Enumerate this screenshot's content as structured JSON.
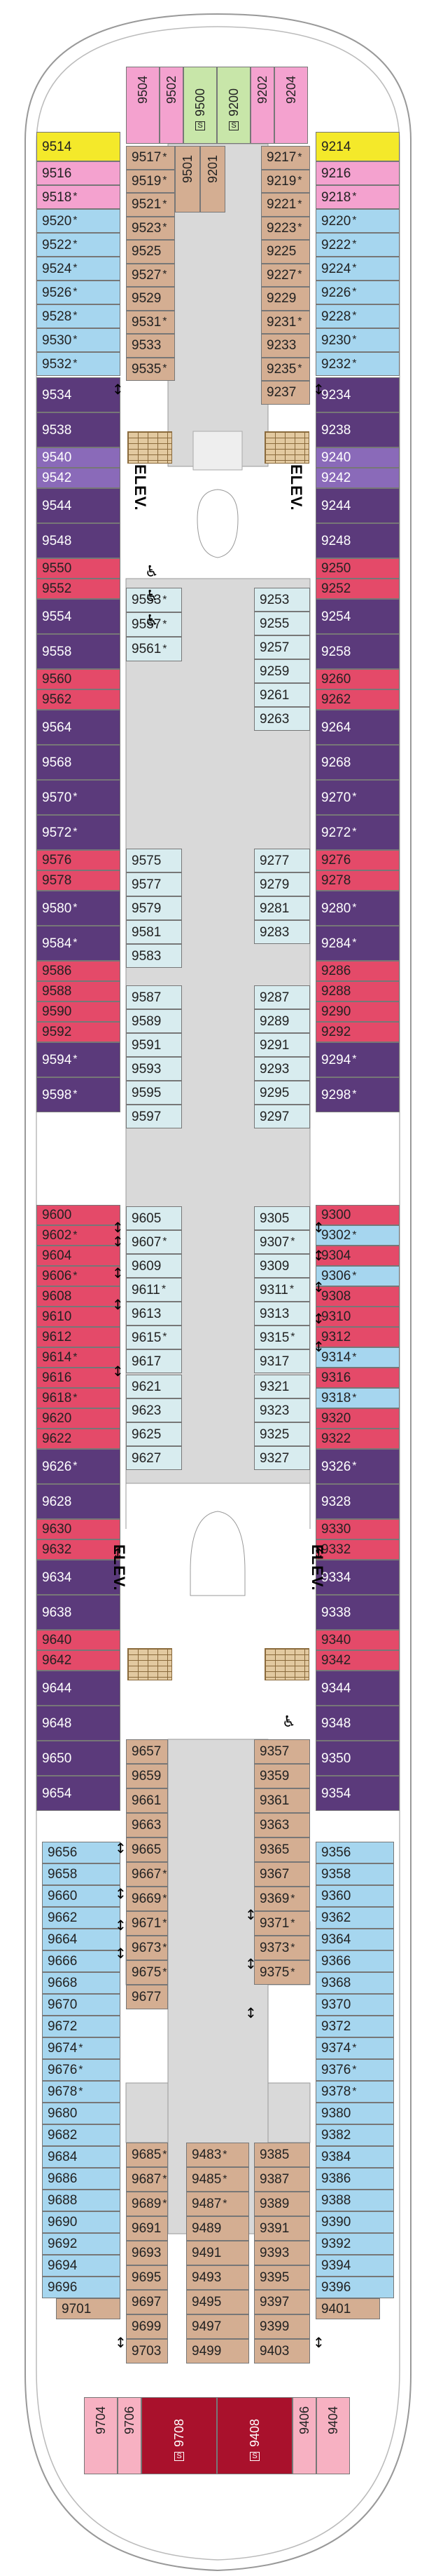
{
  "colors": {
    "sea_blue": "#a6d6ef",
    "tan": "#d4ae92",
    "purple": "#5b3a7b",
    "red": "#e44a69",
    "yellow": "#f4e92a",
    "pink": "#f4a2cf",
    "green": "#c8e6a9",
    "pale_cyan": "#d8ecef",
    "lilac": "#8a6ab9",
    "dark_red": "#a9112c",
    "light_pink": "#f7b1c2",
    "grey": "#d9d9d9"
  },
  "labels": {
    "elevator": "ELEV.",
    "accessible_icon": "wheelchair-icon",
    "connecting_icon": "connecting-arrow-icon",
    "suite_badge": "S"
  },
  "cabins": [
    {
      "n": "9514",
      "c": "yellow"
    },
    {
      "n": "9516",
      "c": "pink"
    },
    {
      "n": "9518",
      "c": "pink",
      "a": true
    },
    {
      "n": "9520",
      "c": "sea_blue",
      "a": true
    },
    {
      "n": "9522",
      "c": "sea_blue",
      "a": true
    },
    {
      "n": "9524",
      "c": "sea_blue",
      "a": true
    },
    {
      "n": "9526",
      "c": "sea_blue",
      "a": true
    },
    {
      "n": "9528",
      "c": "sea_blue",
      "a": true
    },
    {
      "n": "9530",
      "c": "sea_blue",
      "a": true
    },
    {
      "n": "9532",
      "c": "sea_blue",
      "a": true
    },
    {
      "n": "9534",
      "c": "purple"
    },
    {
      "n": "9538",
      "c": "purple"
    },
    {
      "n": "9540",
      "c": "lilac"
    },
    {
      "n": "9542",
      "c": "lilac"
    },
    {
      "n": "9544",
      "c": "purple"
    },
    {
      "n": "9548",
      "c": "purple"
    },
    {
      "n": "9550",
      "c": "red"
    },
    {
      "n": "9552",
      "c": "red"
    },
    {
      "n": "9554",
      "c": "purple"
    },
    {
      "n": "9558",
      "c": "purple"
    },
    {
      "n": "9560",
      "c": "red"
    },
    {
      "n": "9562",
      "c": "red"
    },
    {
      "n": "9564",
      "c": "purple"
    },
    {
      "n": "9568",
      "c": "purple"
    },
    {
      "n": "9570",
      "c": "purple",
      "a": true
    },
    {
      "n": "9572",
      "c": "purple",
      "a": true
    },
    {
      "n": "9576",
      "c": "red"
    },
    {
      "n": "9578",
      "c": "red"
    },
    {
      "n": "9580",
      "c": "purple",
      "a": true
    },
    {
      "n": "9584",
      "c": "purple",
      "a": true
    },
    {
      "n": "9586",
      "c": "red"
    },
    {
      "n": "9588",
      "c": "red"
    },
    {
      "n": "9590",
      "c": "red"
    },
    {
      "n": "9592",
      "c": "red"
    },
    {
      "n": "9594",
      "c": "purple",
      "a": true
    },
    {
      "n": "9598",
      "c": "purple",
      "a": true
    },
    {
      "n": "9600",
      "c": "red"
    },
    {
      "n": "9602",
      "c": "red",
      "a": true
    },
    {
      "n": "9604",
      "c": "red"
    },
    {
      "n": "9606",
      "c": "red",
      "a": true
    },
    {
      "n": "9608",
      "c": "red"
    },
    {
      "n": "9610",
      "c": "red"
    },
    {
      "n": "9612",
      "c": "red"
    },
    {
      "n": "9614",
      "c": "red",
      "a": true
    },
    {
      "n": "9616",
      "c": "red"
    },
    {
      "n": "9618",
      "c": "red",
      "a": true
    },
    {
      "n": "9620",
      "c": "red"
    },
    {
      "n": "9622",
      "c": "red"
    },
    {
      "n": "9626",
      "c": "purple",
      "a": true
    },
    {
      "n": "9628",
      "c": "purple"
    },
    {
      "n": "9630",
      "c": "red"
    },
    {
      "n": "9632",
      "c": "red"
    },
    {
      "n": "9634",
      "c": "purple"
    },
    {
      "n": "9638",
      "c": "purple"
    },
    {
      "n": "9640",
      "c": "red"
    },
    {
      "n": "9642",
      "c": "red"
    },
    {
      "n": "9644",
      "c": "purple"
    },
    {
      "n": "9648",
      "c": "purple"
    },
    {
      "n": "9650",
      "c": "purple"
    },
    {
      "n": "9654",
      "c": "purple"
    },
    {
      "n": "9656",
      "c": "sea_blue"
    },
    {
      "n": "9658",
      "c": "sea_blue"
    },
    {
      "n": "9660",
      "c": "sea_blue"
    },
    {
      "n": "9662",
      "c": "sea_blue"
    },
    {
      "n": "9664",
      "c": "sea_blue"
    },
    {
      "n": "9666",
      "c": "sea_blue"
    },
    {
      "n": "9668",
      "c": "sea_blue"
    },
    {
      "n": "9670",
      "c": "sea_blue"
    },
    {
      "n": "9672",
      "c": "sea_blue"
    },
    {
      "n": "9674",
      "c": "sea_blue",
      "a": true
    },
    {
      "n": "9676",
      "c": "sea_blue",
      "a": true
    },
    {
      "n": "9678",
      "c": "sea_blue",
      "a": true
    },
    {
      "n": "9680",
      "c": "sea_blue"
    },
    {
      "n": "9682",
      "c": "sea_blue"
    },
    {
      "n": "9684",
      "c": "sea_blue"
    },
    {
      "n": "9686",
      "c": "sea_blue"
    },
    {
      "n": "9688",
      "c": "sea_blue"
    },
    {
      "n": "9690",
      "c": "sea_blue"
    },
    {
      "n": "9692",
      "c": "sea_blue"
    },
    {
      "n": "9694",
      "c": "sea_blue"
    },
    {
      "n": "9696",
      "c": "sea_blue"
    },
    {
      "n": "9701",
      "c": "tan"
    },
    {
      "n": "9504",
      "c": "pink"
    },
    {
      "n": "9502",
      "c": "pink"
    },
    {
      "n": "9500",
      "c": "green"
    },
    {
      "n": "9200",
      "c": "green"
    },
    {
      "n": "9202",
      "c": "pink"
    },
    {
      "n": "9204",
      "c": "pink"
    },
    {
      "n": "9517",
      "c": "tan",
      "a": true
    },
    {
      "n": "9519",
      "c": "tan",
      "a": true
    },
    {
      "n": "9521",
      "c": "tan",
      "a": true
    },
    {
      "n": "9523",
      "c": "tan",
      "a": true
    },
    {
      "n": "9525",
      "c": "tan"
    },
    {
      "n": "9527",
      "c": "tan",
      "a": true
    },
    {
      "n": "9529",
      "c": "tan"
    },
    {
      "n": "9531",
      "c": "tan",
      "a": true
    },
    {
      "n": "9533",
      "c": "tan"
    },
    {
      "n": "9535",
      "c": "tan",
      "a": true
    },
    {
      "n": "9501",
      "c": "tan"
    },
    {
      "n": "9201",
      "c": "tan"
    },
    {
      "n": "9217",
      "c": "tan",
      "a": true
    },
    {
      "n": "9219",
      "c": "tan",
      "a": true
    },
    {
      "n": "9221",
      "c": "tan",
      "a": true
    },
    {
      "n": "9223",
      "c": "tan",
      "a": true
    },
    {
      "n": "9225",
      "c": "tan"
    },
    {
      "n": "9227",
      "c": "tan",
      "a": true
    },
    {
      "n": "9229",
      "c": "tan"
    },
    {
      "n": "9231",
      "c": "tan",
      "a": true
    },
    {
      "n": "9233",
      "c": "tan"
    },
    {
      "n": "9235",
      "c": "tan",
      "a": true
    },
    {
      "n": "9237",
      "c": "tan"
    },
    {
      "n": "9553",
      "c": "pale_cyan",
      "a": true
    },
    {
      "n": "9557",
      "c": "pale_cyan",
      "a": true
    },
    {
      "n": "9561",
      "c": "pale_cyan",
      "a": true
    },
    {
      "n": "9575",
      "c": "pale_cyan"
    },
    {
      "n": "9577",
      "c": "pale_cyan"
    },
    {
      "n": "9579",
      "c": "pale_cyan"
    },
    {
      "n": "9581",
      "c": "pale_cyan"
    },
    {
      "n": "9583",
      "c": "pale_cyan"
    },
    {
      "n": "9587",
      "c": "pale_cyan"
    },
    {
      "n": "9589",
      "c": "pale_cyan"
    },
    {
      "n": "9591",
      "c": "pale_cyan"
    },
    {
      "n": "9593",
      "c": "pale_cyan"
    },
    {
      "n": "9595",
      "c": "pale_cyan"
    },
    {
      "n": "9597",
      "c": "pale_cyan"
    },
    {
      "n": "9605",
      "c": "pale_cyan"
    },
    {
      "n": "9607",
      "c": "pale_cyan",
      "a": true
    },
    {
      "n": "9609",
      "c": "pale_cyan"
    },
    {
      "n": "9611",
      "c": "pale_cyan",
      "a": true
    },
    {
      "n": "9613",
      "c": "pale_cyan"
    },
    {
      "n": "9615",
      "c": "pale_cyan",
      "a": true
    },
    {
      "n": "9617",
      "c": "pale_cyan"
    },
    {
      "n": "9621",
      "c": "pale_cyan"
    },
    {
      "n": "9623",
      "c": "pale_cyan"
    },
    {
      "n": "9625",
      "c": "pale_cyan"
    },
    {
      "n": "9627",
      "c": "pale_cyan"
    },
    {
      "n": "9253",
      "c": "pale_cyan"
    },
    {
      "n": "9255",
      "c": "pale_cyan"
    },
    {
      "n": "9257",
      "c": "pale_cyan"
    },
    {
      "n": "9259",
      "c": "pale_cyan"
    },
    {
      "n": "9261",
      "c": "pale_cyan"
    },
    {
      "n": "9263",
      "c": "pale_cyan"
    },
    {
      "n": "9277",
      "c": "pale_cyan"
    },
    {
      "n": "9279",
      "c": "pale_cyan"
    },
    {
      "n": "9281",
      "c": "pale_cyan"
    },
    {
      "n": "9283",
      "c": "pale_cyan"
    },
    {
      "n": "9287",
      "c": "pale_cyan"
    },
    {
      "n": "9289",
      "c": "pale_cyan"
    },
    {
      "n": "9291",
      "c": "pale_cyan"
    },
    {
      "n": "9293",
      "c": "pale_cyan"
    },
    {
      "n": "9295",
      "c": "pale_cyan"
    },
    {
      "n": "9297",
      "c": "pale_cyan"
    },
    {
      "n": "9305",
      "c": "pale_cyan"
    },
    {
      "n": "9307",
      "c": "pale_cyan",
      "a": true
    },
    {
      "n": "9309",
      "c": "pale_cyan"
    },
    {
      "n": "9311",
      "c": "pale_cyan",
      "a": true
    },
    {
      "n": "9313",
      "c": "pale_cyan"
    },
    {
      "n": "9315",
      "c": "pale_cyan",
      "a": true
    },
    {
      "n": "9317",
      "c": "pale_cyan"
    },
    {
      "n": "9321",
      "c": "pale_cyan"
    },
    {
      "n": "9323",
      "c": "pale_cyan"
    },
    {
      "n": "9325",
      "c": "pale_cyan"
    },
    {
      "n": "9327",
      "c": "pale_cyan"
    },
    {
      "n": "9657",
      "c": "tan"
    },
    {
      "n": "9659",
      "c": "tan"
    },
    {
      "n": "9661",
      "c": "tan"
    },
    {
      "n": "9663",
      "c": "tan"
    },
    {
      "n": "9665",
      "c": "tan"
    },
    {
      "n": "9667",
      "c": "tan",
      "a": true
    },
    {
      "n": "9669",
      "c": "tan",
      "a": true
    },
    {
      "n": "9671",
      "c": "tan",
      "a": true
    },
    {
      "n": "9673",
      "c": "tan",
      "a": true
    },
    {
      "n": "9675",
      "c": "tan",
      "a": true
    },
    {
      "n": "9677",
      "c": "tan"
    },
    {
      "n": "9685",
      "c": "tan",
      "a": true
    },
    {
      "n": "9687",
      "c": "tan",
      "a": true
    },
    {
      "n": "9689",
      "c": "tan",
      "a": true
    },
    {
      "n": "9691",
      "c": "tan"
    },
    {
      "n": "9693",
      "c": "tan"
    },
    {
      "n": "9695",
      "c": "tan"
    },
    {
      "n": "9697",
      "c": "tan"
    },
    {
      "n": "9699",
      "c": "tan"
    },
    {
      "n": "9703",
      "c": "tan"
    },
    {
      "n": "9483",
      "c": "tan",
      "a": true
    },
    {
      "n": "9485",
      "c": "tan",
      "a": true
    },
    {
      "n": "9487",
      "c": "tan",
      "a": true
    },
    {
      "n": "9489",
      "c": "tan"
    },
    {
      "n": "9491",
      "c": "tan"
    },
    {
      "n": "9493",
      "c": "tan"
    },
    {
      "n": "9495",
      "c": "tan"
    },
    {
      "n": "9497",
      "c": "tan"
    },
    {
      "n": "9499",
      "c": "tan"
    },
    {
      "n": "9357",
      "c": "tan"
    },
    {
      "n": "9359",
      "c": "tan"
    },
    {
      "n": "9361",
      "c": "tan"
    },
    {
      "n": "9363",
      "c": "tan"
    },
    {
      "n": "9365",
      "c": "tan"
    },
    {
      "n": "9367",
      "c": "tan"
    },
    {
      "n": "9369",
      "c": "tan",
      "a": true
    },
    {
      "n": "9371",
      "c": "tan",
      "a": true
    },
    {
      "n": "9373",
      "c": "tan",
      "a": true
    },
    {
      "n": "9375",
      "c": "tan",
      "a": true
    },
    {
      "n": "9385",
      "c": "tan"
    },
    {
      "n": "9387",
      "c": "tan"
    },
    {
      "n": "9389",
      "c": "tan"
    },
    {
      "n": "9391",
      "c": "tan"
    },
    {
      "n": "9393",
      "c": "tan"
    },
    {
      "n": "9395",
      "c": "tan"
    },
    {
      "n": "9397",
      "c": "tan"
    },
    {
      "n": "9399",
      "c": "tan"
    },
    {
      "n": "9403",
      "c": "tan"
    },
    {
      "n": "9214",
      "c": "yellow"
    },
    {
      "n": "9216",
      "c": "pink"
    },
    {
      "n": "9218",
      "c": "pink",
      "a": true
    },
    {
      "n": "9220",
      "c": "sea_blue",
      "a": true
    },
    {
      "n": "9222",
      "c": "sea_blue",
      "a": true
    },
    {
      "n": "9224",
      "c": "sea_blue",
      "a": true
    },
    {
      "n": "9226",
      "c": "sea_blue",
      "a": true
    },
    {
      "n": "9228",
      "c": "sea_blue",
      "a": true
    },
    {
      "n": "9230",
      "c": "sea_blue",
      "a": true
    },
    {
      "n": "9232",
      "c": "sea_blue",
      "a": true
    },
    {
      "n": "9234",
      "c": "purple"
    },
    {
      "n": "9238",
      "c": "purple"
    },
    {
      "n": "9240",
      "c": "lilac"
    },
    {
      "n": "9242",
      "c": "lilac"
    },
    {
      "n": "9244",
      "c": "purple"
    },
    {
      "n": "9248",
      "c": "purple"
    },
    {
      "n": "9250",
      "c": "red"
    },
    {
      "n": "9252",
      "c": "red"
    },
    {
      "n": "9254",
      "c": "purple"
    },
    {
      "n": "9258",
      "c": "purple"
    },
    {
      "n": "9260",
      "c": "red"
    },
    {
      "n": "9262",
      "c": "red"
    },
    {
      "n": "9264",
      "c": "purple"
    },
    {
      "n": "9268",
      "c": "purple"
    },
    {
      "n": "9270",
      "c": "purple",
      "a": true
    },
    {
      "n": "9272",
      "c": "purple",
      "a": true
    },
    {
      "n": "9276",
      "c": "red"
    },
    {
      "n": "9278",
      "c": "red"
    },
    {
      "n": "9280",
      "c": "purple",
      "a": true
    },
    {
      "n": "9284",
      "c": "purple",
      "a": true
    },
    {
      "n": "9286",
      "c": "red"
    },
    {
      "n": "9288",
      "c": "red"
    },
    {
      "n": "9290",
      "c": "red"
    },
    {
      "n": "9292",
      "c": "red"
    },
    {
      "n": "9294",
      "c": "purple",
      "a": true
    },
    {
      "n": "9298",
      "c": "purple",
      "a": true
    },
    {
      "n": "9300",
      "c": "red"
    },
    {
      "n": "9302",
      "c": "sea_blue",
      "a": true
    },
    {
      "n": "9304",
      "c": "red"
    },
    {
      "n": "9306",
      "c": "sea_blue",
      "a": true
    },
    {
      "n": "9308",
      "c": "red"
    },
    {
      "n": "9310",
      "c": "red"
    },
    {
      "n": "9312",
      "c": "red"
    },
    {
      "n": "9314",
      "c": "sea_blue",
      "a": true
    },
    {
      "n": "9316",
      "c": "red"
    },
    {
      "n": "9318",
      "c": "sea_blue",
      "a": true
    },
    {
      "n": "9320",
      "c": "red"
    },
    {
      "n": "9322",
      "c": "red"
    },
    {
      "n": "9326",
      "c": "purple",
      "a": true
    },
    {
      "n": "9328",
      "c": "purple"
    },
    {
      "n": "9330",
      "c": "red"
    },
    {
      "n": "9332",
      "c": "red"
    },
    {
      "n": "9334",
      "c": "purple"
    },
    {
      "n": "9338",
      "c": "purple"
    },
    {
      "n": "9340",
      "c": "red"
    },
    {
      "n": "9342",
      "c": "red"
    },
    {
      "n": "9344",
      "c": "purple"
    },
    {
      "n": "9348",
      "c": "purple"
    },
    {
      "n": "9350",
      "c": "purple"
    },
    {
      "n": "9354",
      "c": "purple"
    },
    {
      "n": "9356",
      "c": "sea_blue"
    },
    {
      "n": "9358",
      "c": "sea_blue"
    },
    {
      "n": "9360",
      "c": "sea_blue"
    },
    {
      "n": "9362",
      "c": "sea_blue"
    },
    {
      "n": "9364",
      "c": "sea_blue"
    },
    {
      "n": "9366",
      "c": "sea_blue"
    },
    {
      "n": "9368",
      "c": "sea_blue"
    },
    {
      "n": "9370",
      "c": "sea_blue"
    },
    {
      "n": "9372",
      "c": "sea_blue"
    },
    {
      "n": "9374",
      "c": "sea_blue",
      "a": true
    },
    {
      "n": "9376",
      "c": "sea_blue",
      "a": true
    },
    {
      "n": "9378",
      "c": "sea_blue",
      "a": true
    },
    {
      "n": "9380",
      "c": "sea_blue"
    },
    {
      "n": "9382",
      "c": "sea_blue"
    },
    {
      "n": "9384",
      "c": "sea_blue"
    },
    {
      "n": "9386",
      "c": "sea_blue"
    },
    {
      "n": "9388",
      "c": "sea_blue"
    },
    {
      "n": "9390",
      "c": "sea_blue"
    },
    {
      "n": "9392",
      "c": "sea_blue"
    },
    {
      "n": "9394",
      "c": "sea_blue"
    },
    {
      "n": "9396",
      "c": "sea_blue"
    },
    {
      "n": "9401",
      "c": "tan"
    },
    {
      "n": "9704",
      "c": "light_pink"
    },
    {
      "n": "9706",
      "c": "light_pink"
    },
    {
      "n": "9708",
      "c": "dark_red"
    },
    {
      "n": "9408",
      "c": "dark_red"
    },
    {
      "n": "9406",
      "c": "light_pink"
    },
    {
      "n": "9404",
      "c": "light_pink"
    }
  ]
}
